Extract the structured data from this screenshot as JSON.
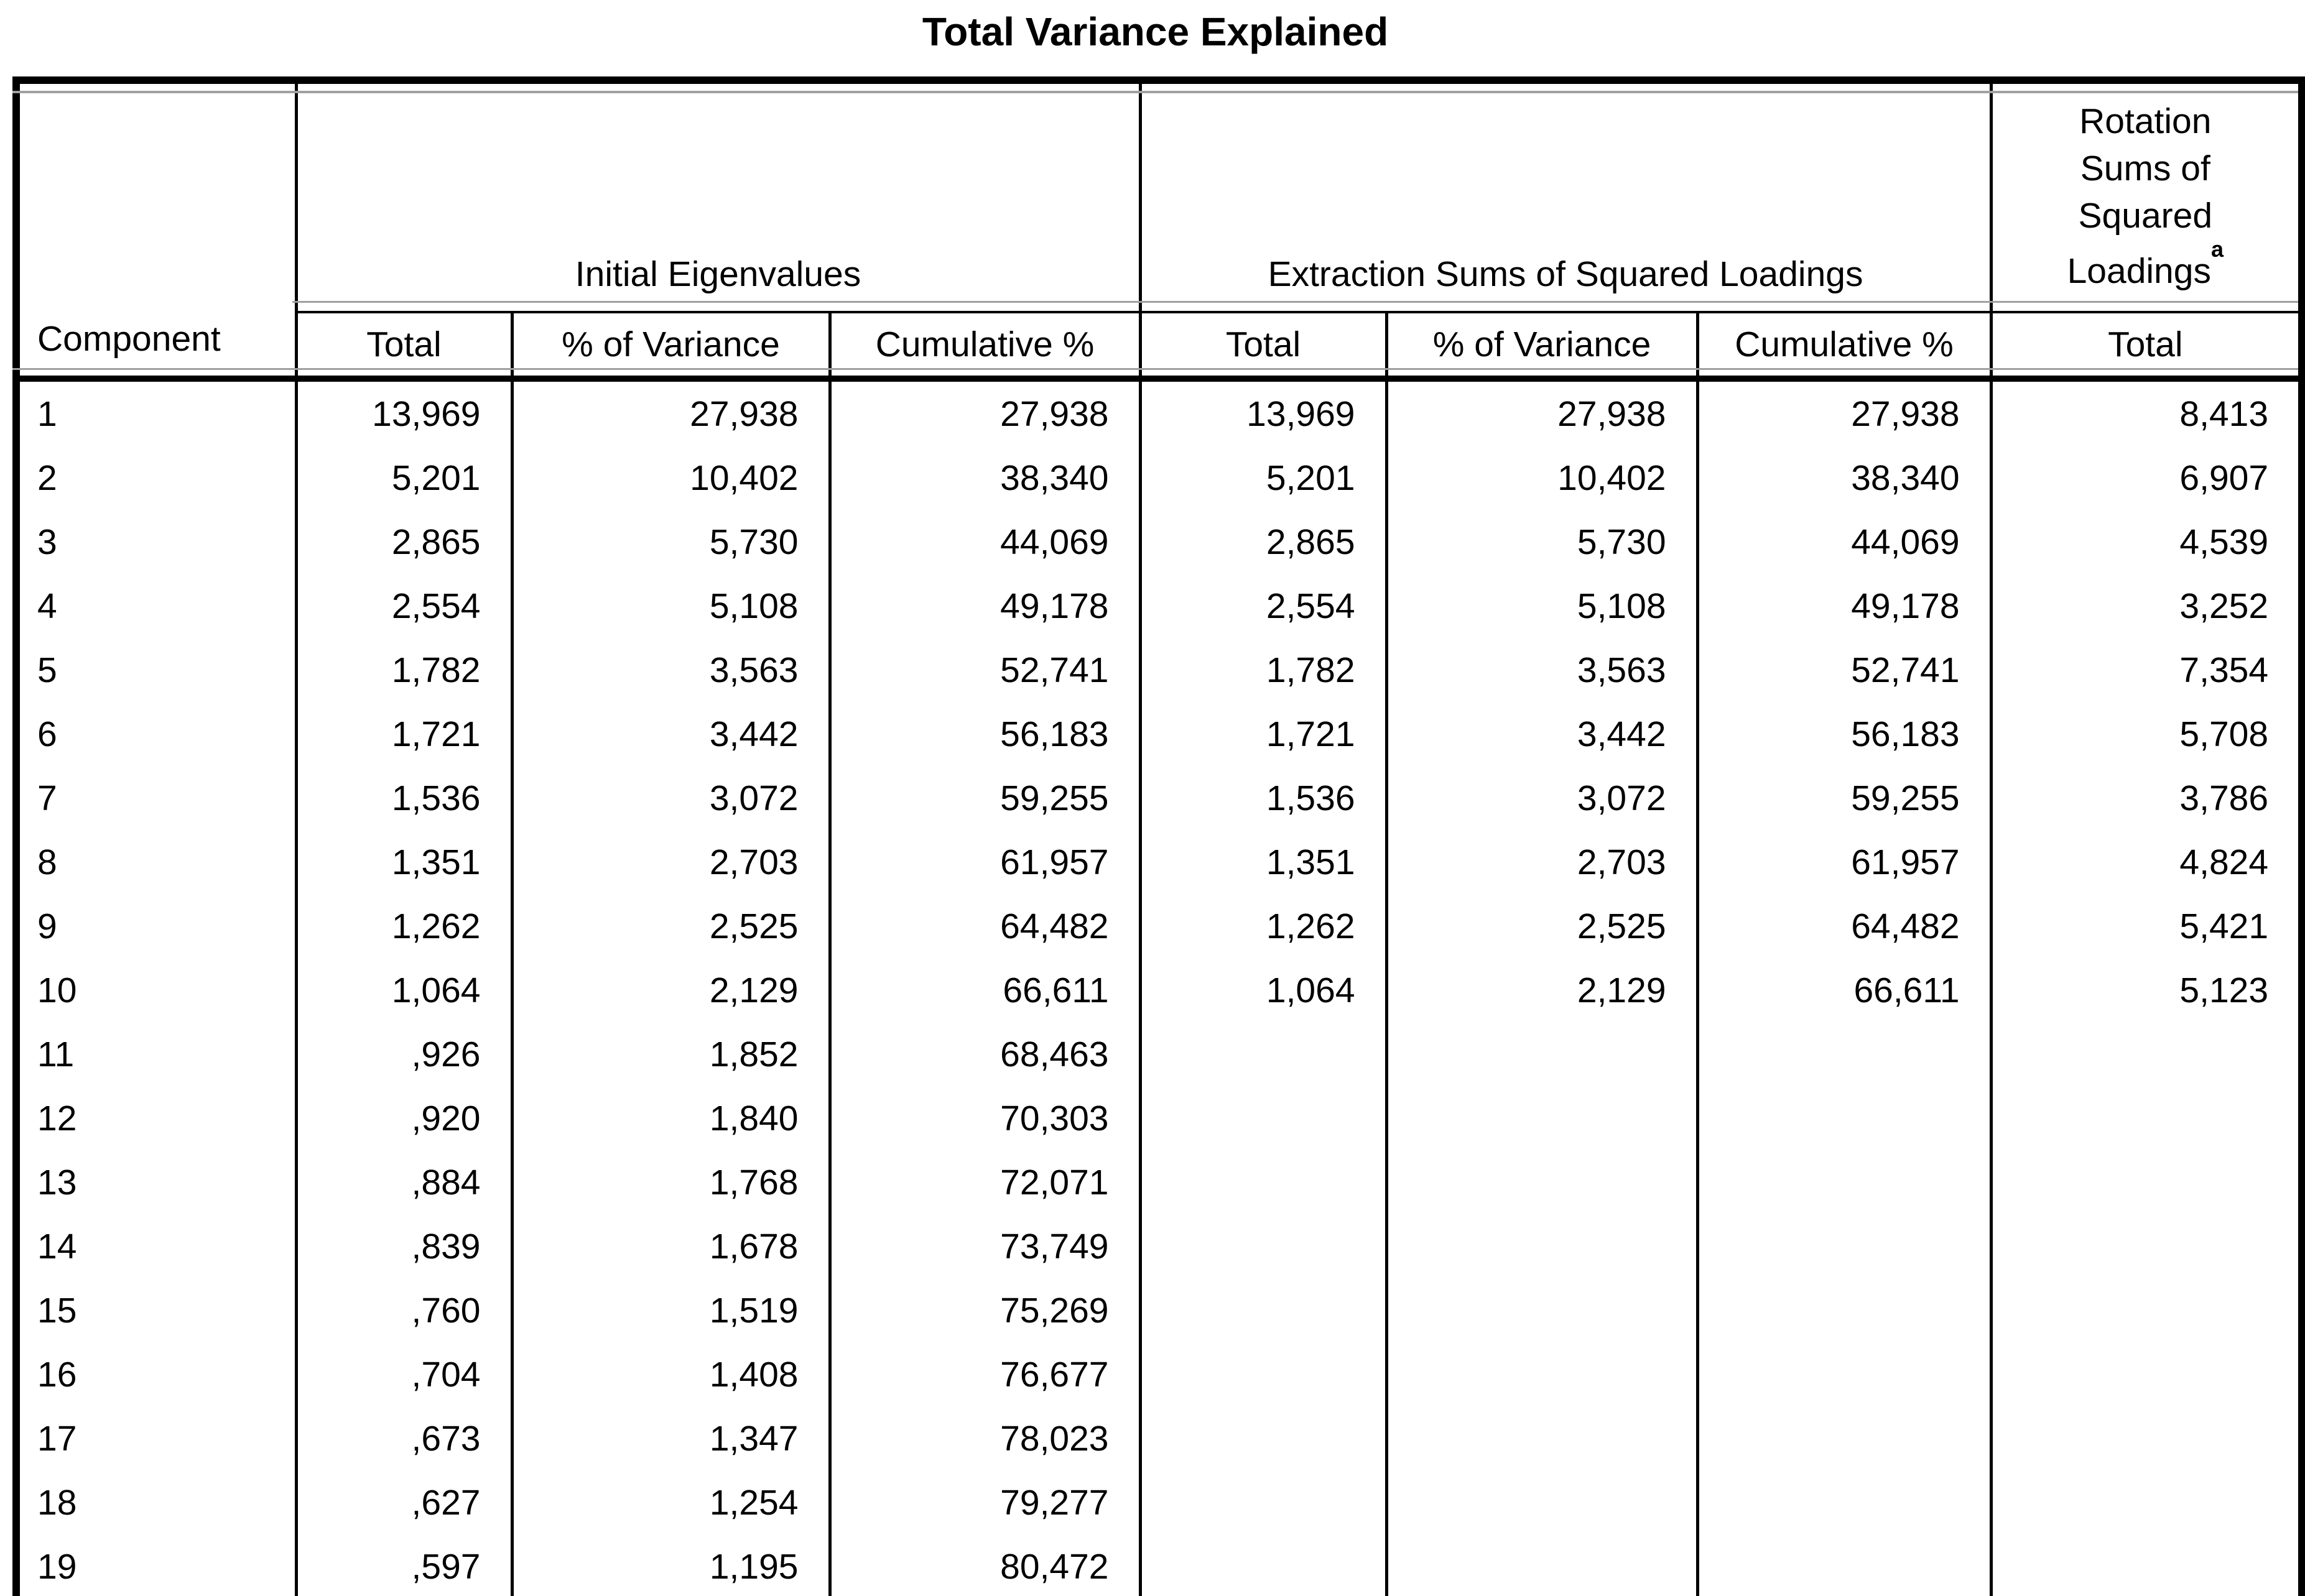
{
  "title": "Total Variance Explained",
  "table": {
    "row_header": "Component",
    "groups": [
      {
        "label": "Initial Eigenvalues",
        "colspan": 3
      },
      {
        "label": "Extraction Sums of Squared Loadings",
        "colspan": 3
      },
      {
        "label": "Rotation Sums of Squared Loadings",
        "lines": [
          "Rotation",
          "Sums of",
          "Squared",
          "Loadings"
        ],
        "superscript": "a",
        "colspan": 1
      }
    ],
    "columns": [
      "Total",
      "% of Variance",
      "Cumulative %",
      "Total",
      "% of Variance",
      "Cumulative %",
      "Total"
    ],
    "rows": [
      {
        "component": "1",
        "cells": [
          "13,969",
          "27,938",
          "27,938",
          "13,969",
          "27,938",
          "27,938",
          "8,413"
        ]
      },
      {
        "component": "2",
        "cells": [
          "5,201",
          "10,402",
          "38,340",
          "5,201",
          "10,402",
          "38,340",
          "6,907"
        ]
      },
      {
        "component": "3",
        "cells": [
          "2,865",
          "5,730",
          "44,069",
          "2,865",
          "5,730",
          "44,069",
          "4,539"
        ]
      },
      {
        "component": "4",
        "cells": [
          "2,554",
          "5,108",
          "49,178",
          "2,554",
          "5,108",
          "49,178",
          "3,252"
        ]
      },
      {
        "component": "5",
        "cells": [
          "1,782",
          "3,563",
          "52,741",
          "1,782",
          "3,563",
          "52,741",
          "7,354"
        ]
      },
      {
        "component": "6",
        "cells": [
          "1,721",
          "3,442",
          "56,183",
          "1,721",
          "3,442",
          "56,183",
          "5,708"
        ]
      },
      {
        "component": "7",
        "cells": [
          "1,536",
          "3,072",
          "59,255",
          "1,536",
          "3,072",
          "59,255",
          "3,786"
        ]
      },
      {
        "component": "8",
        "cells": [
          "1,351",
          "2,703",
          "61,957",
          "1,351",
          "2,703",
          "61,957",
          "4,824"
        ]
      },
      {
        "component": "9",
        "cells": [
          "1,262",
          "2,525",
          "64,482",
          "1,262",
          "2,525",
          "64,482",
          "5,421"
        ]
      },
      {
        "component": "10",
        "cells": [
          "1,064",
          "2,129",
          "66,611",
          "1,064",
          "2,129",
          "66,611",
          "5,123"
        ]
      },
      {
        "component": "11",
        "cells": [
          ",926",
          "1,852",
          "68,463",
          "",
          "",
          "",
          ""
        ]
      },
      {
        "component": "12",
        "cells": [
          ",920",
          "1,840",
          "70,303",
          "",
          "",
          "",
          ""
        ]
      },
      {
        "component": "13",
        "cells": [
          ",884",
          "1,768",
          "72,071",
          "",
          "",
          "",
          ""
        ]
      },
      {
        "component": "14",
        "cells": [
          ",839",
          "1,678",
          "73,749",
          "",
          "",
          "",
          ""
        ]
      },
      {
        "component": "15",
        "cells": [
          ",760",
          "1,519",
          "75,269",
          "",
          "",
          "",
          ""
        ]
      },
      {
        "component": "16",
        "cells": [
          ",704",
          "1,408",
          "76,677",
          "",
          "",
          "",
          ""
        ]
      },
      {
        "component": "17",
        "cells": [
          ",673",
          "1,347",
          "78,023",
          "",
          "",
          "",
          ""
        ]
      },
      {
        "component": "18",
        "cells": [
          ",627",
          "1,254",
          "79,277",
          "",
          "",
          "",
          ""
        ]
      },
      {
        "component": "19",
        "cells": [
          ",597",
          "1,195",
          "80,472",
          "",
          "",
          "",
          ""
        ]
      }
    ]
  }
}
